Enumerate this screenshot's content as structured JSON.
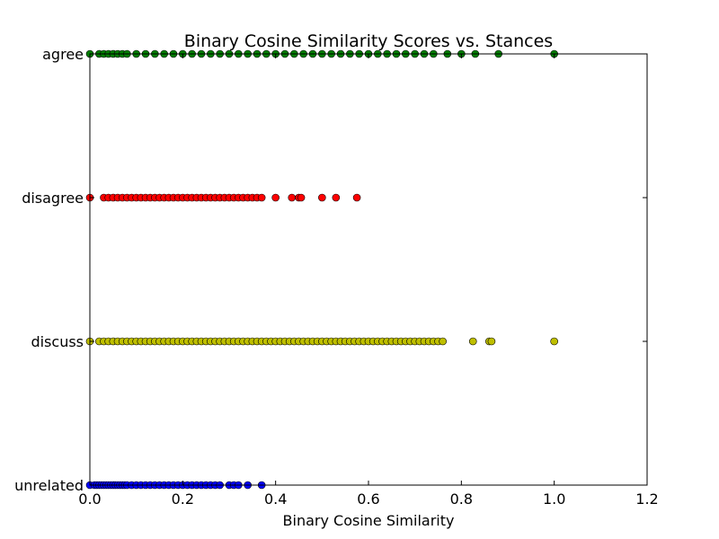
{
  "chart_data": {
    "type": "scatter",
    "title": "Binary Cosine Similarity Scores vs. Stances",
    "xlabel": "Binary Cosine Similarity",
    "ylabel": "",
    "xlim": [
      0.0,
      1.2
    ],
    "x_ticks": [
      "0.0",
      "0.2",
      "0.4",
      "0.6",
      "0.8",
      "1.0",
      "1.2"
    ],
    "categories": [
      "unrelated",
      "discuss",
      "disagree",
      "agree"
    ],
    "grid": false,
    "series": [
      {
        "category": "unrelated",
        "color": "#0000ff",
        "x": [
          0.0,
          0.01,
          0.015,
          0.02,
          0.025,
          0.03,
          0.035,
          0.04,
          0.045,
          0.05,
          0.055,
          0.06,
          0.065,
          0.07,
          0.075,
          0.08,
          0.09,
          0.1,
          0.11,
          0.12,
          0.13,
          0.14,
          0.15,
          0.16,
          0.17,
          0.18,
          0.19,
          0.2,
          0.21,
          0.22,
          0.23,
          0.24,
          0.25,
          0.26,
          0.27,
          0.28,
          0.3,
          0.31,
          0.32,
          0.34,
          0.37
        ]
      },
      {
        "category": "discuss",
        "color": "#bfbf00",
        "x": [
          0.0,
          0.02,
          0.03,
          0.04,
          0.05,
          0.06,
          0.07,
          0.08,
          0.09,
          0.1,
          0.11,
          0.12,
          0.13,
          0.14,
          0.15,
          0.16,
          0.17,
          0.18,
          0.19,
          0.2,
          0.21,
          0.22,
          0.23,
          0.24,
          0.25,
          0.26,
          0.27,
          0.28,
          0.29,
          0.3,
          0.31,
          0.32,
          0.33,
          0.34,
          0.35,
          0.36,
          0.37,
          0.38,
          0.39,
          0.4,
          0.41,
          0.42,
          0.43,
          0.44,
          0.45,
          0.46,
          0.47,
          0.48,
          0.49,
          0.5,
          0.51,
          0.52,
          0.53,
          0.54,
          0.55,
          0.56,
          0.57,
          0.58,
          0.59,
          0.6,
          0.61,
          0.62,
          0.63,
          0.64,
          0.65,
          0.66,
          0.67,
          0.68,
          0.69,
          0.7,
          0.71,
          0.72,
          0.73,
          0.74,
          0.75,
          0.76,
          0.825,
          0.86,
          0.865,
          1.0
        ]
      },
      {
        "category": "disagree",
        "color": "#ff0000",
        "x": [
          0.0,
          0.03,
          0.04,
          0.05,
          0.06,
          0.07,
          0.08,
          0.09,
          0.1,
          0.11,
          0.12,
          0.13,
          0.14,
          0.15,
          0.16,
          0.17,
          0.18,
          0.19,
          0.2,
          0.21,
          0.22,
          0.23,
          0.24,
          0.25,
          0.26,
          0.27,
          0.28,
          0.29,
          0.3,
          0.31,
          0.32,
          0.33,
          0.34,
          0.35,
          0.36,
          0.37,
          0.4,
          0.435,
          0.45,
          0.455,
          0.5,
          0.53,
          0.575
        ]
      },
      {
        "category": "agree",
        "color": "#007f00",
        "x": [
          0.0,
          0.02,
          0.03,
          0.04,
          0.05,
          0.06,
          0.07,
          0.08,
          0.1,
          0.12,
          0.14,
          0.16,
          0.18,
          0.2,
          0.22,
          0.24,
          0.26,
          0.28,
          0.3,
          0.32,
          0.34,
          0.36,
          0.38,
          0.4,
          0.42,
          0.44,
          0.46,
          0.48,
          0.5,
          0.52,
          0.54,
          0.56,
          0.58,
          0.6,
          0.62,
          0.64,
          0.66,
          0.68,
          0.7,
          0.72,
          0.74,
          0.77,
          0.8,
          0.83,
          0.88,
          1.0
        ]
      }
    ]
  }
}
